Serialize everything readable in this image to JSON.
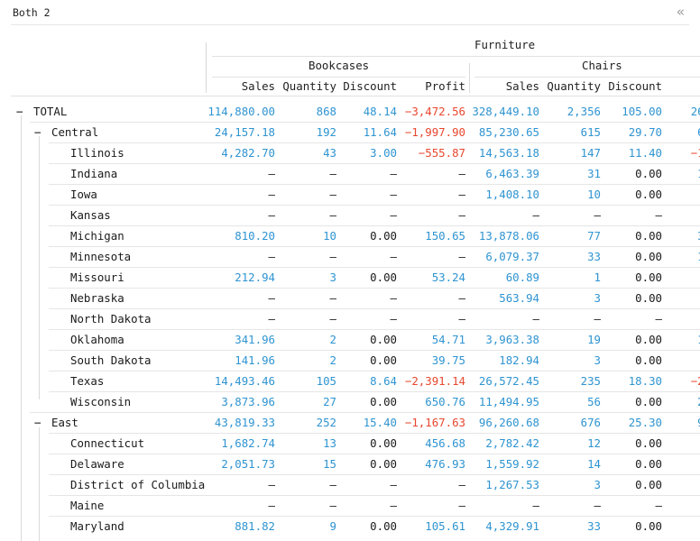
{
  "window": {
    "title": "Both 2",
    "collapse_icon": "«"
  },
  "columns": {
    "group": "Furniture",
    "subgroups": [
      "Bookcases",
      "Chairs"
    ],
    "measures": [
      "Sales",
      "Quantity",
      "Discount",
      "Profit",
      "Sales",
      "Quantity",
      "Discount",
      "P"
    ]
  },
  "colors": {
    "positive": "#2f94d1",
    "negative": "#e8472e",
    "neutral": "#1a1a1a"
  },
  "rows": [
    {
      "label": "TOTAL",
      "level": 0,
      "toggle": "−",
      "cells": [
        {
          "v": "114,880.00",
          "c": "positive"
        },
        {
          "v": "868",
          "c": "positive"
        },
        {
          "v": "48.14",
          "c": "positive"
        },
        {
          "v": "−3,472.56",
          "c": "negative"
        },
        {
          "v": "328,449.10",
          "c": "positive"
        },
        {
          "v": "2,356",
          "c": "positive"
        },
        {
          "v": "105.00",
          "c": "positive"
        },
        {
          "v": "26,59",
          "c": "positive"
        }
      ]
    },
    {
      "label": "Central",
      "level": 1,
      "toggle": "−",
      "cells": [
        {
          "v": "24,157.18",
          "c": "positive"
        },
        {
          "v": "192",
          "c": "positive"
        },
        {
          "v": "11.64",
          "c": "positive"
        },
        {
          "v": "−1,997.90",
          "c": "negative"
        },
        {
          "v": "85,230.65",
          "c": "positive"
        },
        {
          "v": "615",
          "c": "positive"
        },
        {
          "v": "29.70",
          "c": "positive"
        },
        {
          "v": "6,59",
          "c": "positive"
        }
      ]
    },
    {
      "label": "Illinois",
      "level": 2,
      "cells": [
        {
          "v": "4,282.70",
          "c": "positive"
        },
        {
          "v": "43",
          "c": "positive"
        },
        {
          "v": "3.00",
          "c": "positive"
        },
        {
          "v": "−555.87",
          "c": "negative"
        },
        {
          "v": "14,563.18",
          "c": "positive"
        },
        {
          "v": "147",
          "c": "positive"
        },
        {
          "v": "11.40",
          "c": "positive"
        },
        {
          "v": "−1,57",
          "c": "negative"
        }
      ]
    },
    {
      "label": "Indiana",
      "level": 2,
      "cells": [
        {
          "v": "–",
          "c": "neutral"
        },
        {
          "v": "–",
          "c": "neutral"
        },
        {
          "v": "–",
          "c": "neutral"
        },
        {
          "v": "–",
          "c": "neutral"
        },
        {
          "v": "6,463.39",
          "c": "positive"
        },
        {
          "v": "31",
          "c": "positive"
        },
        {
          "v": "0.00",
          "c": "neutral"
        },
        {
          "v": "1,58",
          "c": "positive"
        }
      ]
    },
    {
      "label": "Iowa",
      "level": 2,
      "cells": [
        {
          "v": "–",
          "c": "neutral"
        },
        {
          "v": "–",
          "c": "neutral"
        },
        {
          "v": "–",
          "c": "neutral"
        },
        {
          "v": "–",
          "c": "neutral"
        },
        {
          "v": "1,408.10",
          "c": "positive"
        },
        {
          "v": "10",
          "c": "positive"
        },
        {
          "v": "0.00",
          "c": "neutral"
        },
        {
          "v": "39",
          "c": "positive"
        }
      ]
    },
    {
      "label": "Kansas",
      "level": 2,
      "cells": [
        {
          "v": "–",
          "c": "neutral"
        },
        {
          "v": "–",
          "c": "neutral"
        },
        {
          "v": "–",
          "c": "neutral"
        },
        {
          "v": "–",
          "c": "neutral"
        },
        {
          "v": "–",
          "c": "neutral"
        },
        {
          "v": "–",
          "c": "neutral"
        },
        {
          "v": "–",
          "c": "neutral"
        },
        {
          "v": "–",
          "c": "neutral"
        }
      ]
    },
    {
      "label": "Michigan",
      "level": 2,
      "cells": [
        {
          "v": "810.20",
          "c": "positive"
        },
        {
          "v": "10",
          "c": "positive"
        },
        {
          "v": "0.00",
          "c": "neutral"
        },
        {
          "v": "150.65",
          "c": "positive"
        },
        {
          "v": "13,878.06",
          "c": "positive"
        },
        {
          "v": "77",
          "c": "positive"
        },
        {
          "v": "0.00",
          "c": "neutral"
        },
        {
          "v": "3,00",
          "c": "positive"
        }
      ]
    },
    {
      "label": "Minnesota",
      "level": 2,
      "cells": [
        {
          "v": "–",
          "c": "neutral"
        },
        {
          "v": "–",
          "c": "neutral"
        },
        {
          "v": "–",
          "c": "neutral"
        },
        {
          "v": "–",
          "c": "neutral"
        },
        {
          "v": "6,079.37",
          "c": "positive"
        },
        {
          "v": "33",
          "c": "positive"
        },
        {
          "v": "0.00",
          "c": "neutral"
        },
        {
          "v": "1,70",
          "c": "positive"
        }
      ]
    },
    {
      "label": "Missouri",
      "level": 2,
      "cells": [
        {
          "v": "212.94",
          "c": "positive"
        },
        {
          "v": "3",
          "c": "positive"
        },
        {
          "v": "0.00",
          "c": "neutral"
        },
        {
          "v": "53.24",
          "c": "positive"
        },
        {
          "v": "60.89",
          "c": "positive"
        },
        {
          "v": "1",
          "c": "positive"
        },
        {
          "v": "0.00",
          "c": "neutral"
        },
        {
          "v": "1",
          "c": "positive"
        }
      ]
    },
    {
      "label": "Nebraska",
      "level": 2,
      "cells": [
        {
          "v": "–",
          "c": "neutral"
        },
        {
          "v": "–",
          "c": "neutral"
        },
        {
          "v": "–",
          "c": "neutral"
        },
        {
          "v": "–",
          "c": "neutral"
        },
        {
          "v": "563.94",
          "c": "positive"
        },
        {
          "v": "3",
          "c": "positive"
        },
        {
          "v": "0.00",
          "c": "neutral"
        },
        {
          "v": "11",
          "c": "positive"
        }
      ]
    },
    {
      "label": "North Dakota",
      "level": 2,
      "cells": [
        {
          "v": "–",
          "c": "neutral"
        },
        {
          "v": "–",
          "c": "neutral"
        },
        {
          "v": "–",
          "c": "neutral"
        },
        {
          "v": "–",
          "c": "neutral"
        },
        {
          "v": "–",
          "c": "neutral"
        },
        {
          "v": "–",
          "c": "neutral"
        },
        {
          "v": "–",
          "c": "neutral"
        },
        {
          "v": "–",
          "c": "neutral"
        }
      ]
    },
    {
      "label": "Oklahoma",
      "level": 2,
      "cells": [
        {
          "v": "341.96",
          "c": "positive"
        },
        {
          "v": "2",
          "c": "positive"
        },
        {
          "v": "0.00",
          "c": "neutral"
        },
        {
          "v": "54.71",
          "c": "positive"
        },
        {
          "v": "3,963.38",
          "c": "positive"
        },
        {
          "v": "19",
          "c": "positive"
        },
        {
          "v": "0.00",
          "c": "neutral"
        },
        {
          "v": "1,10",
          "c": "positive"
        }
      ]
    },
    {
      "label": "South Dakota",
      "level": 2,
      "cells": [
        {
          "v": "141.96",
          "c": "positive"
        },
        {
          "v": "2",
          "c": "positive"
        },
        {
          "v": "0.00",
          "c": "neutral"
        },
        {
          "v": "39.75",
          "c": "positive"
        },
        {
          "v": "182.94",
          "c": "positive"
        },
        {
          "v": "3",
          "c": "positive"
        },
        {
          "v": "0.00",
          "c": "neutral"
        },
        {
          "v": "2",
          "c": "positive"
        }
      ]
    },
    {
      "label": "Texas",
      "level": 2,
      "cells": [
        {
          "v": "14,493.46",
          "c": "positive"
        },
        {
          "v": "105",
          "c": "positive"
        },
        {
          "v": "8.64",
          "c": "positive"
        },
        {
          "v": "−2,391.14",
          "c": "negative"
        },
        {
          "v": "26,572.45",
          "c": "positive"
        },
        {
          "v": "235",
          "c": "positive"
        },
        {
          "v": "18.30",
          "c": "positive"
        },
        {
          "v": "−2,51",
          "c": "negative"
        }
      ]
    },
    {
      "label": "Wisconsin",
      "level": 2,
      "cells": [
        {
          "v": "3,873.96",
          "c": "positive"
        },
        {
          "v": "27",
          "c": "positive"
        },
        {
          "v": "0.00",
          "c": "neutral"
        },
        {
          "v": "650.76",
          "c": "positive"
        },
        {
          "v": "11,494.95",
          "c": "positive"
        },
        {
          "v": "56",
          "c": "positive"
        },
        {
          "v": "0.00",
          "c": "neutral"
        },
        {
          "v": "2,73",
          "c": "positive"
        }
      ]
    },
    {
      "label": "East",
      "level": 1,
      "toggle": "−",
      "cells": [
        {
          "v": "43,819.33",
          "c": "positive"
        },
        {
          "v": "252",
          "c": "positive"
        },
        {
          "v": "15.40",
          "c": "positive"
        },
        {
          "v": "−1,167.63",
          "c": "negative"
        },
        {
          "v": "96,260.68",
          "c": "positive"
        },
        {
          "v": "676",
          "c": "positive"
        },
        {
          "v": "25.30",
          "c": "positive"
        },
        {
          "v": "9,35",
          "c": "positive"
        }
      ]
    },
    {
      "label": "Connecticut",
      "level": 2,
      "cells": [
        {
          "v": "1,682.74",
          "c": "positive"
        },
        {
          "v": "13",
          "c": "positive"
        },
        {
          "v": "0.00",
          "c": "neutral"
        },
        {
          "v": "456.68",
          "c": "positive"
        },
        {
          "v": "2,782.42",
          "c": "positive"
        },
        {
          "v": "12",
          "c": "positive"
        },
        {
          "v": "0.00",
          "c": "neutral"
        },
        {
          "v": "69",
          "c": "positive"
        }
      ]
    },
    {
      "label": "Delaware",
      "level": 2,
      "cells": [
        {
          "v": "2,051.73",
          "c": "positive"
        },
        {
          "v": "15",
          "c": "positive"
        },
        {
          "v": "0.00",
          "c": "neutral"
        },
        {
          "v": "476.93",
          "c": "positive"
        },
        {
          "v": "1,559.92",
          "c": "positive"
        },
        {
          "v": "14",
          "c": "positive"
        },
        {
          "v": "0.00",
          "c": "neutral"
        },
        {
          "v": "34",
          "c": "positive"
        }
      ]
    },
    {
      "label": "District of Columbia",
      "level": 2,
      "cells": [
        {
          "v": "–",
          "c": "neutral"
        },
        {
          "v": "–",
          "c": "neutral"
        },
        {
          "v": "–",
          "c": "neutral"
        },
        {
          "v": "–",
          "c": "neutral"
        },
        {
          "v": "1,267.53",
          "c": "positive"
        },
        {
          "v": "3",
          "c": "positive"
        },
        {
          "v": "0.00",
          "c": "neutral"
        },
        {
          "v": "31",
          "c": "positive"
        }
      ]
    },
    {
      "label": "Maine",
      "level": 2,
      "cells": [
        {
          "v": "–",
          "c": "neutral"
        },
        {
          "v": "–",
          "c": "neutral"
        },
        {
          "v": "–",
          "c": "neutral"
        },
        {
          "v": "–",
          "c": "neutral"
        },
        {
          "v": "–",
          "c": "neutral"
        },
        {
          "v": "–",
          "c": "neutral"
        },
        {
          "v": "–",
          "c": "neutral"
        },
        {
          "v": "–",
          "c": "neutral"
        }
      ]
    },
    {
      "label": "Maryland",
      "level": 2,
      "cells": [
        {
          "v": "881.82",
          "c": "positive"
        },
        {
          "v": "9",
          "c": "positive"
        },
        {
          "v": "0.00",
          "c": "neutral"
        },
        {
          "v": "105.61",
          "c": "positive"
        },
        {
          "v": "4,329.91",
          "c": "positive"
        },
        {
          "v": "33",
          "c": "positive"
        },
        {
          "v": "0.00",
          "c": "neutral"
        },
        {
          "v": "90",
          "c": "positive"
        }
      ]
    }
  ]
}
